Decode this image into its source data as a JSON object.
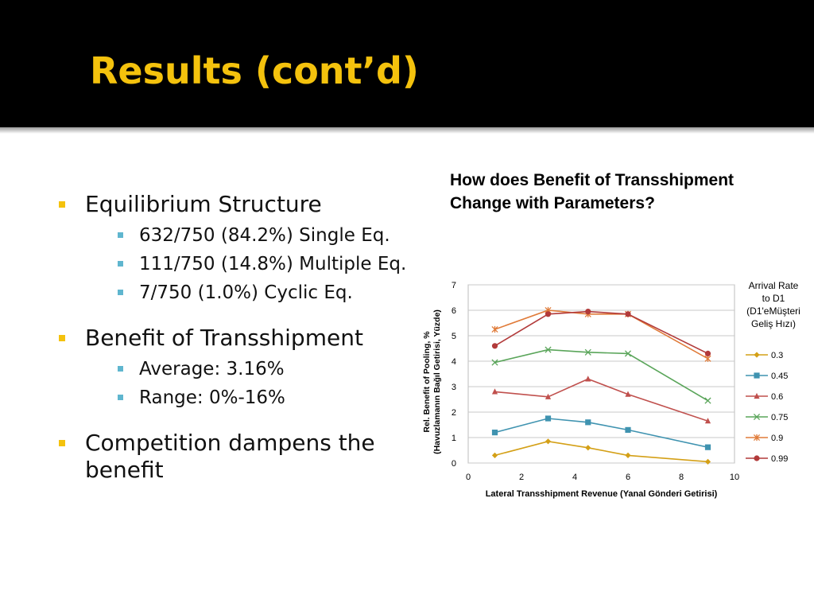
{
  "slide": {
    "title": "Results (cont’d)",
    "bullets": [
      {
        "text": "Equilibrium Structure",
        "children": [
          "632/750 (84.2%) Single Eq.",
          "111/750 (14.8%) Multiple Eq.",
          "7/750 (1.0%) Cyclic Eq."
        ]
      },
      {
        "text": "Benefit of Transshipment",
        "children": [
          "Average: 3.16%",
          "Range: 0%-16%"
        ]
      },
      {
        "text": "Competition dampens the benefit",
        "children": []
      }
    ],
    "chart_heading": "How does Benefit of Transshipment Change with Parameters?"
  },
  "chart_data": {
    "type": "line",
    "title": "",
    "xlabel": "Lateral Transshipment Revenue (Yanal Gönderi Getirisi)",
    "ylabel": "Rel. Benefit of Pooling, % (Havuzlamanın Bağıl Getirisi, Yüzde)",
    "ylabel_lines": [
      "Rel. Benefit of Pooling, %",
      "(Havuzlamanın Bağıl Getirisi, Yüzde)"
    ],
    "xlim": [
      0,
      10
    ],
    "ylim": [
      0,
      7
    ],
    "xticks": [
      0,
      2,
      4,
      6,
      8,
      10
    ],
    "yticks": [
      0,
      1,
      2,
      3,
      4,
      5,
      6,
      7
    ],
    "grid": "horizontal",
    "legend_position": "right",
    "legend_title": "Arrival Rate to D1 (D1'eMüşteri Geliş Hızı)",
    "legend_title_lines": [
      "Arrival Rate",
      "to D1",
      "(D1'eMüşteri",
      "Geliş Hızı)"
    ],
    "x": [
      1,
      3,
      4.5,
      6,
      9
    ],
    "series": [
      {
        "name": "0.3",
        "values": [
          0.3,
          0.85,
          0.6,
          0.3,
          0.05
        ],
        "color": "#d4a017",
        "marker": "diamond"
      },
      {
        "name": "0.45",
        "values": [
          1.2,
          1.75,
          1.6,
          1.3,
          0.62
        ],
        "color": "#3f93b0",
        "marker": "square"
      },
      {
        "name": "0.6",
        "values": [
          2.8,
          2.6,
          3.3,
          2.7,
          1.65
        ],
        "color": "#c0504d",
        "marker": "triangle"
      },
      {
        "name": "0.75",
        "values": [
          3.95,
          4.45,
          4.35,
          4.3,
          2.45
        ],
        "color": "#5aa55a",
        "marker": "x"
      },
      {
        "name": "0.9",
        "values": [
          5.25,
          6.0,
          5.85,
          5.85,
          4.1
        ],
        "color": "#e07b39",
        "marker": "star"
      },
      {
        "name": "0.99",
        "values": [
          4.6,
          5.85,
          5.95,
          5.85,
          4.3
        ],
        "color": "#b23a3a",
        "marker": "circle"
      }
    ]
  }
}
